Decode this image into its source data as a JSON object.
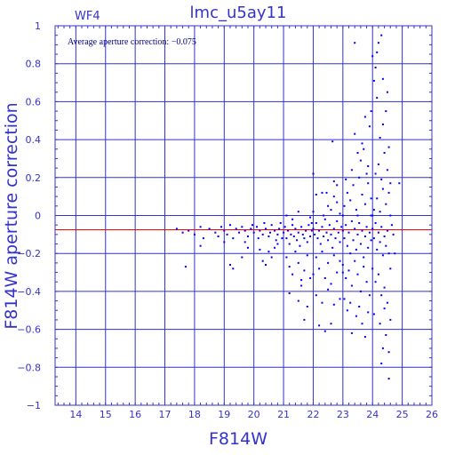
{
  "chart_data": {
    "type": "scatter",
    "title": "lmc_u5ay11",
    "panel_label": "WF4",
    "annotation": "Average aperture correction: −0.075",
    "xlabel": "F814W",
    "ylabel": "F814W aperture correction",
    "xlim": [
      13.3,
      26.0
    ],
    "ylim": [
      -1.0,
      1.0
    ],
    "x_ticks": [
      14,
      15,
      16,
      17,
      18,
      19,
      20,
      21,
      22,
      23,
      24,
      25,
      26
    ],
    "y_ticks": [
      -1,
      -0.8,
      -0.6,
      -0.4,
      -0.2,
      0,
      0.2,
      0.4,
      0.6,
      0.8,
      1
    ],
    "y_tick_labels": [
      "−1",
      "−0.8",
      "−0.6",
      "−0.4",
      "−0.2",
      "0",
      "0.2",
      "0.4",
      "0.6",
      "0.8",
      "1"
    ],
    "grid": true,
    "reference_line": {
      "y": -0.075,
      "color": "#ff0000"
    },
    "colors": {
      "axes": "#3333cc",
      "points": "#0000ff",
      "reference": "#ff0000"
    },
    "points": [
      [
        17.4,
        -0.07
      ],
      [
        17.6,
        -0.09
      ],
      [
        17.8,
        -0.08
      ],
      [
        17.7,
        -0.27
      ],
      [
        18.0,
        -0.1
      ],
      [
        18.2,
        -0.06
      ],
      [
        18.3,
        -0.12
      ],
      [
        18.2,
        -0.16
      ],
      [
        18.5,
        -0.07
      ],
      [
        18.7,
        -0.09
      ],
      [
        18.8,
        -0.11
      ],
      [
        18.9,
        -0.06
      ],
      [
        19.0,
        -0.08
      ],
      [
        19.1,
        -0.1
      ],
      [
        19.2,
        -0.05
      ],
      [
        19.3,
        -0.12
      ],
      [
        19.4,
        -0.07
      ],
      [
        19.5,
        -0.09
      ],
      [
        19.6,
        -0.06
      ],
      [
        19.7,
        -0.08
      ],
      [
        19.8,
        -0.11
      ],
      [
        19.9,
        -0.07
      ],
      [
        19.95,
        -0.05
      ],
      [
        19.2,
        -0.26
      ],
      [
        19.3,
        -0.28
      ],
      [
        19.6,
        -0.22
      ],
      [
        19.8,
        -0.17
      ],
      [
        19.7,
        -0.14
      ],
      [
        19.0,
        -0.14
      ],
      [
        20.0,
        -0.09
      ],
      [
        20.1,
        -0.06
      ],
      [
        20.15,
        -0.12
      ],
      [
        20.2,
        -0.08
      ],
      [
        20.3,
        -0.1
      ],
      [
        20.35,
        -0.04
      ],
      [
        20.4,
        -0.07
      ],
      [
        20.5,
        -0.11
      ],
      [
        20.55,
        -0.09
      ],
      [
        20.6,
        -0.05
      ],
      [
        20.7,
        -0.08
      ],
      [
        20.75,
        -0.13
      ],
      [
        20.8,
        -0.1
      ],
      [
        20.85,
        -0.07
      ],
      [
        20.9,
        -0.04
      ],
      [
        20.95,
        -0.12
      ],
      [
        20.3,
        -0.24
      ],
      [
        20.4,
        -0.26
      ],
      [
        20.5,
        -0.19
      ],
      [
        20.6,
        -0.22
      ],
      [
        20.7,
        -0.17
      ],
      [
        20.8,
        -0.15
      ],
      [
        20.2,
        -0.18
      ],
      [
        21.0,
        -0.09
      ],
      [
        21.05,
        -0.06
      ],
      [
        21.1,
        -0.12
      ],
      [
        21.15,
        -0.08
      ],
      [
        21.2,
        -0.15
      ],
      [
        21.25,
        -0.1
      ],
      [
        21.3,
        -0.05
      ],
      [
        21.35,
        -0.11
      ],
      [
        21.4,
        -0.07
      ],
      [
        21.45,
        -0.13
      ],
      [
        21.5,
        -0.09
      ],
      [
        21.55,
        -0.16
      ],
      [
        21.6,
        -0.06
      ],
      [
        21.65,
        -0.1
      ],
      [
        21.7,
        -0.12
      ],
      [
        21.75,
        -0.08
      ],
      [
        21.8,
        -0.14
      ],
      [
        21.85,
        -0.05
      ],
      [
        21.9,
        -0.11
      ],
      [
        21.95,
        -0.08
      ],
      [
        21.1,
        -0.22
      ],
      [
        21.2,
        -0.27
      ],
      [
        21.3,
        -0.31
      ],
      [
        21.4,
        -0.19
      ],
      [
        21.5,
        -0.25
      ],
      [
        21.6,
        -0.34
      ],
      [
        21.7,
        -0.29
      ],
      [
        21.8,
        -0.21
      ],
      [
        21.9,
        -0.33
      ],
      [
        21.2,
        -0.41
      ],
      [
        21.5,
        -0.45
      ],
      [
        21.7,
        -0.55
      ],
      [
        21.8,
        -0.48
      ],
      [
        21.6,
        -0.37
      ],
      [
        21.1,
        0.0
      ],
      [
        21.3,
        -0.02
      ],
      [
        21.5,
        0.02
      ],
      [
        21.9,
        -0.01
      ],
      [
        21.95,
        -0.04
      ],
      [
        22.0,
        -0.07
      ],
      [
        22.05,
        -0.1
      ],
      [
        22.1,
        -0.04
      ],
      [
        22.15,
        -0.12
      ],
      [
        22.2,
        -0.08
      ],
      [
        22.25,
        -0.15
      ],
      [
        22.3,
        -0.06
      ],
      [
        22.35,
        -0.11
      ],
      [
        22.4,
        -0.02
      ],
      [
        22.45,
        -0.09
      ],
      [
        22.5,
        -0.13
      ],
      [
        22.55,
        -0.05
      ],
      [
        22.6,
        -0.1
      ],
      [
        22.65,
        -0.17
      ],
      [
        22.7,
        -0.07
      ],
      [
        22.75,
        -0.12
      ],
      [
        22.8,
        -0.03
      ],
      [
        22.85,
        -0.09
      ],
      [
        22.9,
        -0.14
      ],
      [
        22.95,
        -0.06
      ],
      [
        22.1,
        -0.22
      ],
      [
        22.2,
        -0.28
      ],
      [
        22.3,
        -0.19
      ],
      [
        22.4,
        -0.33
      ],
      [
        22.5,
        -0.25
      ],
      [
        22.6,
        -0.36
      ],
      [
        22.7,
        -0.21
      ],
      [
        22.8,
        -0.3
      ],
      [
        22.9,
        -0.24
      ],
      [
        22.0,
        -0.31
      ],
      [
        22.1,
        -0.42
      ],
      [
        22.3,
        -0.46
      ],
      [
        22.5,
        -0.39
      ],
      [
        22.2,
        -0.58
      ],
      [
        22.4,
        -0.61
      ],
      [
        22.6,
        -0.57
      ],
      [
        22.7,
        -0.47
      ],
      [
        22.9,
        -0.44
      ],
      [
        22.0,
        0.02
      ],
      [
        22.1,
        0.11
      ],
      [
        22.3,
        0.12
      ],
      [
        22.5,
        0.05
      ],
      [
        22.6,
        0.03
      ],
      [
        22.7,
        0.1
      ],
      [
        22.8,
        0.07
      ],
      [
        22.9,
        0.01
      ],
      [
        22.35,
        0.0
      ],
      [
        22.0,
        0.22
      ],
      [
        22.7,
        0.18
      ],
      [
        22.8,
        0.16
      ],
      [
        22.45,
        0.12
      ],
      [
        22.65,
        0.39
      ],
      [
        23.0,
        -0.08
      ],
      [
        23.05,
        -0.12
      ],
      [
        23.1,
        -0.05
      ],
      [
        23.15,
        -0.16
      ],
      [
        23.2,
        -0.09
      ],
      [
        23.25,
        -0.2
      ],
      [
        23.3,
        -0.03
      ],
      [
        23.35,
        -0.13
      ],
      [
        23.4,
        -0.07
      ],
      [
        23.45,
        -0.18
      ],
      [
        23.5,
        -0.1
      ],
      [
        23.55,
        -0.04
      ],
      [
        23.6,
        -0.15
      ],
      [
        23.65,
        -0.08
      ],
      [
        23.7,
        -0.22
      ],
      [
        23.75,
        -0.11
      ],
      [
        23.8,
        -0.06
      ],
      [
        23.85,
        -0.17
      ],
      [
        23.9,
        -0.09
      ],
      [
        23.95,
        -0.13
      ],
      [
        23.0,
        -0.26
      ],
      [
        23.1,
        -0.33
      ],
      [
        23.2,
        -0.29
      ],
      [
        23.3,
        -0.37
      ],
      [
        23.4,
        -0.24
      ],
      [
        23.5,
        -0.31
      ],
      [
        23.6,
        -0.4
      ],
      [
        23.7,
        -0.27
      ],
      [
        23.8,
        -0.35
      ],
      [
        23.9,
        -0.42
      ],
      [
        23.05,
        -0.44
      ],
      [
        23.15,
        -0.5
      ],
      [
        23.25,
        -0.46
      ],
      [
        23.45,
        -0.53
      ],
      [
        23.55,
        -0.48
      ],
      [
        23.65,
        -0.57
      ],
      [
        23.85,
        -0.51
      ],
      [
        23.0,
        -0.3
      ],
      [
        23.3,
        -0.62
      ],
      [
        23.75,
        -0.64
      ],
      [
        23.05,
        0.05
      ],
      [
        23.15,
        0.12
      ],
      [
        23.25,
        0.08
      ],
      [
        23.35,
        0.16
      ],
      [
        23.45,
        0.03
      ],
      [
        23.55,
        0.2
      ],
      [
        23.65,
        0.11
      ],
      [
        23.75,
        0.06
      ],
      [
        23.85,
        0.17
      ],
      [
        23.95,
        0.09
      ],
      [
        23.1,
        0.19
      ],
      [
        23.3,
        0.24
      ],
      [
        23.6,
        0.29
      ],
      [
        23.7,
        0.35
      ],
      [
        23.8,
        0.22
      ],
      [
        23.5,
        0.33
      ],
      [
        23.65,
        0.38
      ],
      [
        23.4,
        0.43
      ],
      [
        23.9,
        0.47
      ],
      [
        23.85,
        0.26
      ],
      [
        23.75,
        0.52
      ],
      [
        23.95,
        0.55
      ],
      [
        23.4,
        0.91
      ],
      [
        23.5,
        0.0
      ],
      [
        23.95,
        0.0
      ],
      [
        23.0,
        0.0
      ],
      [
        24.0,
        -0.07
      ],
      [
        24.05,
        -0.12
      ],
      [
        24.1,
        -0.04
      ],
      [
        24.15,
        -0.18
      ],
      [
        24.2,
        -0.09
      ],
      [
        24.25,
        -0.14
      ],
      [
        24.3,
        -0.06
      ],
      [
        24.35,
        -0.21
      ],
      [
        24.4,
        -0.11
      ],
      [
        24.45,
        -0.16
      ],
      [
        24.5,
        -0.08
      ],
      [
        24.55,
        -0.2
      ],
      [
        24.0,
        -0.28
      ],
      [
        24.1,
        -0.35
      ],
      [
        24.2,
        -0.31
      ],
      [
        24.3,
        -0.42
      ],
      [
        24.4,
        -0.38
      ],
      [
        24.5,
        -0.46
      ],
      [
        24.05,
        -0.52
      ],
      [
        24.25,
        -0.57
      ],
      [
        24.45,
        -0.63
      ],
      [
        24.35,
        -0.7
      ],
      [
        24.55,
        -0.72
      ],
      [
        24.6,
        -0.55
      ],
      [
        24.4,
        -0.49
      ],
      [
        24.6,
        -0.28
      ],
      [
        24.05,
        0.03
      ],
      [
        24.15,
        0.09
      ],
      [
        24.25,
        0.02
      ],
      [
        24.35,
        0.14
      ],
      [
        24.45,
        0.06
      ],
      [
        24.55,
        0.12
      ],
      [
        24.1,
        0.22
      ],
      [
        24.2,
        0.27
      ],
      [
        24.3,
        0.19
      ],
      [
        24.4,
        0.33
      ],
      [
        24.5,
        0.24
      ],
      [
        24.25,
        0.41
      ],
      [
        24.35,
        0.48
      ],
      [
        24.45,
        0.55
      ],
      [
        24.15,
        0.62
      ],
      [
        24.05,
        0.71
      ],
      [
        24.1,
        0.78
      ],
      [
        24.15,
        0.86
      ],
      [
        24.2,
        0.91
      ],
      [
        24.3,
        0.95
      ],
      [
        24.35,
        0.72
      ],
      [
        24.0,
        0.84
      ],
      [
        24.5,
        0.65
      ],
      [
        24.55,
        0.36
      ],
      [
        24.6,
        0.17
      ],
      [
        24.9,
        0.17
      ],
      [
        24.0,
        0.0
      ],
      [
        24.6,
        0.0
      ],
      [
        24.65,
        -0.05
      ],
      [
        24.7,
        -0.1
      ],
      [
        24.75,
        -0.2
      ],
      [
        24.3,
        -0.78
      ],
      [
        24.55,
        -0.86
      ]
    ]
  }
}
